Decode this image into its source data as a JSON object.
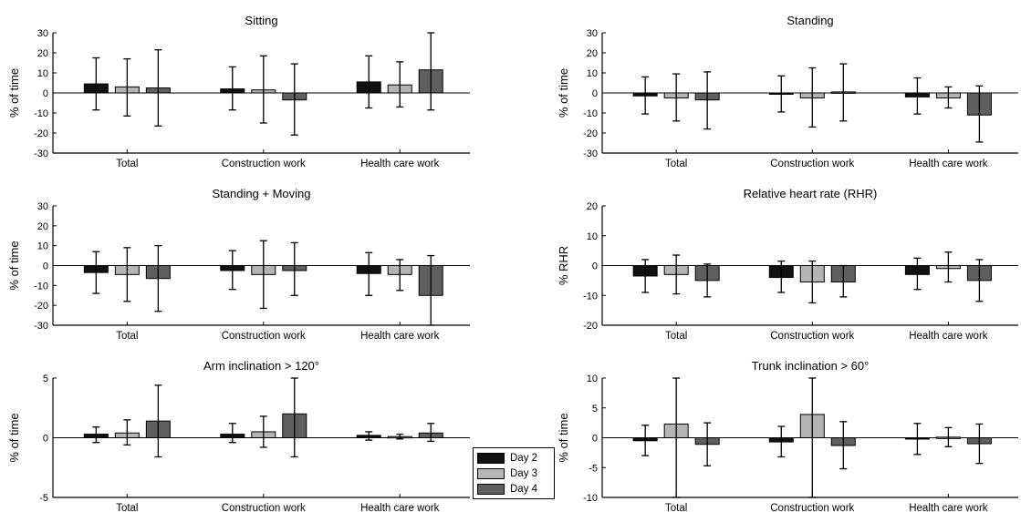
{
  "colors": {
    "day2": "#111111",
    "day3": "#b4b4b4",
    "day4": "#5f5f5f"
  },
  "legend": {
    "items": [
      {
        "label": "Day 2",
        "color": "#111111"
      },
      {
        "label": "Day 3",
        "color": "#b4b4b4"
      },
      {
        "label": "Day 4",
        "color": "#5f5f5f"
      }
    ]
  },
  "chart_data": [
    {
      "type": "bar",
      "title": "Sitting",
      "ylabel": "% of time",
      "categories": [
        "Total",
        "Construction work",
        "Health care work"
      ],
      "ylim": [
        -30,
        30
      ],
      "yticks": [
        -30,
        -20,
        -10,
        0,
        10,
        20,
        30
      ],
      "series": [
        {
          "name": "Day 2",
          "values": [
            4.5,
            2,
            5.5
          ],
          "err_low": [
            -8.5,
            -8.5,
            -7.5
          ],
          "err_high": [
            17.5,
            13,
            18.5
          ]
        },
        {
          "name": "Day 3",
          "values": [
            3,
            1.5,
            4
          ],
          "err_low": [
            -11.5,
            -15,
            -7
          ],
          "err_high": [
            17,
            18.5,
            15.5
          ]
        },
        {
          "name": "Day 4",
          "values": [
            2.5,
            -3.5,
            11.5
          ],
          "err_low": [
            -16.5,
            -21,
            -8.5
          ],
          "err_high": [
            21.5,
            14.5,
            30
          ]
        }
      ]
    },
    {
      "type": "bar",
      "title": "Standing",
      "ylabel": "% of time",
      "categories": [
        "Total",
        "Construction work",
        "Health care work"
      ],
      "ylim": [
        -30,
        30
      ],
      "yticks": [
        -30,
        -20,
        -10,
        0,
        10,
        20,
        30
      ],
      "series": [
        {
          "name": "Day 2",
          "values": [
            -1.5,
            -0.5,
            -2
          ],
          "err_low": [
            -10.5,
            -9.5,
            -10.5
          ],
          "err_high": [
            8,
            8.5,
            7.5
          ]
        },
        {
          "name": "Day 3",
          "values": [
            -2.5,
            -2.5,
            -2.5
          ],
          "err_low": [
            -14,
            -17,
            -7.5
          ],
          "err_high": [
            9.5,
            12.5,
            3
          ]
        },
        {
          "name": "Day 4",
          "values": [
            -3.5,
            0.5,
            -11
          ],
          "err_low": [
            -18,
            -14,
            -24.5
          ],
          "err_high": [
            10.5,
            14.5,
            3.5
          ]
        }
      ]
    },
    {
      "type": "bar",
      "title": "Standing + Moving",
      "ylabel": "% of time",
      "categories": [
        "Total",
        "Construction work",
        "Health care work"
      ],
      "ylim": [
        -30,
        30
      ],
      "yticks": [
        -30,
        -20,
        -10,
        0,
        10,
        20,
        30
      ],
      "series": [
        {
          "name": "Day 2",
          "values": [
            -3.5,
            -2.5,
            -4
          ],
          "err_low": [
            -14,
            -12,
            -15
          ],
          "err_high": [
            7,
            7.5,
            6.5
          ]
        },
        {
          "name": "Day 3",
          "values": [
            -4.5,
            -4.5,
            -4.5
          ],
          "err_low": [
            -18,
            -21.5,
            -12.5
          ],
          "err_high": [
            9,
            12.5,
            3
          ]
        },
        {
          "name": "Day 4",
          "values": [
            -6.5,
            -2.5,
            -15
          ],
          "err_low": [
            -23,
            -15,
            -30
          ],
          "err_high": [
            10,
            11.5,
            5
          ]
        }
      ]
    },
    {
      "type": "bar",
      "title": "Relative heart rate (RHR)",
      "ylabel": "% RHR",
      "categories": [
        "Total",
        "Construction work",
        "Health care work"
      ],
      "ylim": [
        -20,
        20
      ],
      "yticks": [
        -20,
        -10,
        0,
        10,
        20
      ],
      "series": [
        {
          "name": "Day 2",
          "values": [
            -3.5,
            -4,
            -3
          ],
          "err_low": [
            -9,
            -9,
            -8
          ],
          "err_high": [
            2,
            1.5,
            2.5
          ]
        },
        {
          "name": "Day 3",
          "values": [
            -3,
            -5.5,
            -1
          ],
          "err_low": [
            -9.5,
            -12.5,
            -5.5
          ],
          "err_high": [
            3.5,
            1.5,
            4.5
          ]
        },
        {
          "name": "Day 4",
          "values": [
            -5,
            -5.5,
            -5
          ],
          "err_low": [
            -10.5,
            -10.5,
            -12
          ],
          "err_high": [
            0.5,
            0,
            2
          ]
        }
      ]
    },
    {
      "type": "bar",
      "title": "Arm inclination > 120°",
      "ylabel": "% of time",
      "categories": [
        "Total",
        "Construction work",
        "Health care work"
      ],
      "ylim": [
        -5,
        5
      ],
      "yticks": [
        -5,
        0,
        5
      ],
      "series": [
        {
          "name": "Day 2",
          "values": [
            0.3,
            0.3,
            0.2
          ],
          "err_low": [
            -0.4,
            -0.4,
            -0.2
          ],
          "err_high": [
            0.9,
            1.2,
            0.5
          ]
        },
        {
          "name": "Day 3",
          "values": [
            0.4,
            0.5,
            0.1
          ],
          "err_low": [
            -0.6,
            -0.8,
            -0.1
          ],
          "err_high": [
            1.5,
            1.8,
            0.3
          ]
        },
        {
          "name": "Day 4",
          "values": [
            1.4,
            2.0,
            0.4
          ],
          "err_low": [
            -1.6,
            -1.6,
            -0.3
          ],
          "err_high": [
            4.4,
            5.0,
            1.2
          ]
        }
      ]
    },
    {
      "type": "bar",
      "title": "Trunk inclination > 60°",
      "ylabel": "% of time",
      "categories": [
        "Total",
        "Construction work",
        "Health care work"
      ],
      "ylim": [
        -10,
        10
      ],
      "yticks": [
        -10,
        -5,
        0,
        5,
        10
      ],
      "series": [
        {
          "name": "Day 2",
          "values": [
            -0.5,
            -0.7,
            -0.2
          ],
          "err_low": [
            -3,
            -3.2,
            -2.8
          ],
          "err_high": [
            2.1,
            1.9,
            2.4
          ]
        },
        {
          "name": "Day 3",
          "values": [
            2.3,
            3.9,
            0.1
          ],
          "err_low": [
            -10,
            -10,
            -1.5
          ],
          "err_high": [
            10,
            10,
            1.7
          ]
        },
        {
          "name": "Day 4",
          "values": [
            -1.1,
            -1.3,
            -1.0
          ],
          "err_low": [
            -4.7,
            -5.2,
            -4.3
          ],
          "err_high": [
            2.5,
            2.7,
            2.3
          ]
        }
      ]
    }
  ]
}
